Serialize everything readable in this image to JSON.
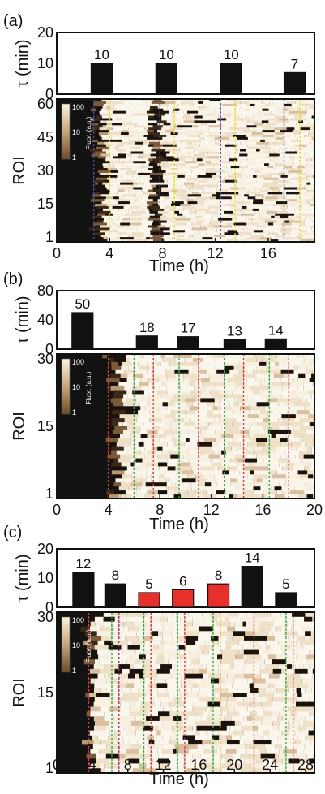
{
  "chart_data": [
    {
      "panel_label": "(a)",
      "type": "bar",
      "bar_ylabel": "τ (min)",
      "bar_yticks": [
        "20",
        "10",
        "0"
      ],
      "bar_ylim": [
        0,
        20
      ],
      "bars": [
        {
          "x": 3.4,
          "value": 10,
          "label": "10",
          "color": "#111111"
        },
        {
          "x": 8.3,
          "value": 10,
          "label": "10",
          "color": "#111111"
        },
        {
          "x": 13.2,
          "value": 10,
          "label": "10",
          "color": "#111111"
        },
        {
          "x": 18.0,
          "value": 7,
          "label": "7",
          "color": "#111111"
        }
      ],
      "heatmap_ylabel": "ROI",
      "heatmap_yticks": [
        "60",
        "45",
        "30",
        "15",
        "1"
      ],
      "xlabel": "Time (h)",
      "xticks": [
        "0",
        "4",
        "8",
        "12",
        "16"
      ],
      "xlim": [
        0,
        19.5
      ],
      "colorbar": {
        "label": "Fluor. (a.u.)",
        "ticks": [
          "100",
          "10",
          "1"
        ]
      },
      "dashed_lines": [
        {
          "x": 4.0,
          "color": "#e8dc2a"
        },
        {
          "x": 8.9,
          "color": "#e8dc2a"
        },
        {
          "x": 13.5,
          "color": "#e8dc2a"
        },
        {
          "x": 18.4,
          "color": "#e8dc2a"
        },
        {
          "x": 2.8,
          "color": "#4a4aa8"
        },
        {
          "x": 7.8,
          "color": "#4a4aa8"
        },
        {
          "x": 12.4,
          "color": "#4a4aa8"
        },
        {
          "x": 17.2,
          "color": "#4a4aa8"
        }
      ],
      "start_fraction": 0.15,
      "bright_bands": [
        [
          3.2,
          6.8
        ],
        [
          7.6,
          19.5
        ]
      ]
    },
    {
      "panel_label": "(b)",
      "type": "bar",
      "bar_ylabel": "τ (min)",
      "bar_yticks": [
        "80",
        "40",
        "0"
      ],
      "bar_ylim": [
        0,
        80
      ],
      "bars": [
        {
          "x": 2.0,
          "value": 50,
          "label": "50",
          "color": "#111111"
        },
        {
          "x": 7.0,
          "value": 18,
          "label": "18",
          "color": "#111111"
        },
        {
          "x": 10.2,
          "value": 17,
          "label": "17",
          "color": "#111111"
        },
        {
          "x": 13.8,
          "value": 13,
          "label": "13",
          "color": "#111111"
        },
        {
          "x": 17.0,
          "value": 14,
          "label": "14",
          "color": "#111111"
        }
      ],
      "heatmap_ylabel": "ROI",
      "heatmap_yticks": [
        "30",
        "15",
        "1"
      ],
      "xlabel": "Time (h)",
      "xticks": [
        "0",
        "4",
        "8",
        "12",
        "16",
        "20"
      ],
      "xlim": [
        0,
        20
      ],
      "colorbar": {
        "label": "Fluor. (a.u.)",
        "ticks": [
          "100",
          "10",
          "1"
        ]
      },
      "dashed_lines": [
        {
          "x": 4.0,
          "color": "#d83a3a"
        },
        {
          "x": 7.5,
          "color": "#d83a3a"
        },
        {
          "x": 11.0,
          "color": "#d83a3a"
        },
        {
          "x": 14.5,
          "color": "#d83a3a"
        },
        {
          "x": 18.0,
          "color": "#d83a3a"
        },
        {
          "x": 6.0,
          "color": "#36a844"
        },
        {
          "x": 9.5,
          "color": "#36a844"
        },
        {
          "x": 13.0,
          "color": "#36a844"
        },
        {
          "x": 16.5,
          "color": "#36a844"
        }
      ],
      "start_fraction": 0.2,
      "bright_bands": [
        [
          4.5,
          20
        ]
      ]
    },
    {
      "panel_label": "(c)",
      "type": "bar",
      "bar_ylabel": "τ (min)",
      "bar_yticks": [
        "20",
        "10",
        "0"
      ],
      "bar_ylim": [
        0,
        20
      ],
      "bars": [
        {
          "x": 3.0,
          "value": 12,
          "label": "12",
          "color": "#111111"
        },
        {
          "x": 6.6,
          "value": 8,
          "label": "8",
          "color": "#111111"
        },
        {
          "x": 10.4,
          "value": 5,
          "label": "5",
          "color": "#e8302a"
        },
        {
          "x": 14.2,
          "value": 6,
          "label": "6",
          "color": "#e8302a"
        },
        {
          "x": 18.2,
          "value": 8,
          "label": "8",
          "color": "#e8302a"
        },
        {
          "x": 22.0,
          "value": 14,
          "label": "14",
          "color": "#111111"
        },
        {
          "x": 25.8,
          "value": 5,
          "label": "5",
          "color": "#111111"
        }
      ],
      "heatmap_ylabel": "ROI",
      "heatmap_yticks": [
        "30",
        "15",
        "1"
      ],
      "xlabel": "Time (h)",
      "xticks": [
        "0",
        "4",
        "8",
        "12",
        "16",
        "20",
        "24",
        "28"
      ],
      "xlim": [
        0,
        29
      ],
      "colorbar": {
        "label": "Fluor. (a.u.)",
        "ticks": [
          "100",
          "10",
          "1"
        ]
      },
      "dashed_lines": [
        {
          "x": 3.6,
          "color": "#d83a3a"
        },
        {
          "x": 6.2,
          "color": "#36a844"
        },
        {
          "x": 7.0,
          "color": "#a8306e"
        },
        {
          "x": 9.8,
          "color": "#36a844"
        },
        {
          "x": 10.6,
          "color": "#d83a3a"
        },
        {
          "x": 13.6,
          "color": "#36a844"
        },
        {
          "x": 14.4,
          "color": "#d83a3a"
        },
        {
          "x": 17.6,
          "color": "#36a844"
        },
        {
          "x": 18.4,
          "color": "#f0a020"
        },
        {
          "x": 22.2,
          "color": "#d83a3a"
        },
        {
          "x": 25.8,
          "color": "#36a844"
        },
        {
          "x": 26.6,
          "color": "#d83a3a"
        }
      ],
      "start_fraction": 0.12,
      "bright_bands": [
        [
          3.6,
          29
        ]
      ]
    }
  ]
}
